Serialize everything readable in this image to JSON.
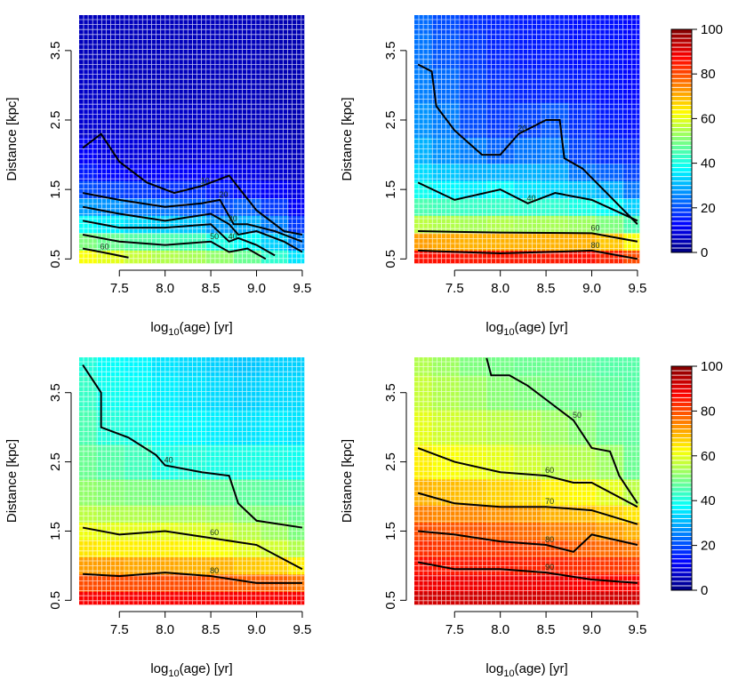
{
  "chart_data": [
    {
      "type": "heatmap",
      "x_label": {
        "base": "log",
        "sub": "10",
        "rest": "(age) [yr]"
      },
      "y_label": "Distance [kpc]",
      "xlim": [
        7.06,
        9.52
      ],
      "ylim": [
        0.44,
        4.01
      ],
      "xticks": [
        7.5,
        {
          "value": 8,
          "label": "8.0"
        },
        8.5,
        {
          "value": 9,
          "label": "9.0"
        },
        9.5
      ],
      "yticks": [
        0.5,
        1.5,
        2.5,
        3.5
      ],
      "zlim": [
        0,
        100
      ],
      "colorscale": [
        "#00007f",
        "#0000ff",
        "#007fff",
        "#00ffff",
        "#7fff7f",
        "#ffff00",
        "#ff7f00",
        "#ff0000",
        "#7f0000"
      ],
      "x": [
        7.1,
        7.4,
        7.7,
        8.0,
        8.3,
        8.6,
        8.9,
        9.2,
        9.5
      ],
      "y": [
        0.5,
        0.75,
        1.0,
        1.25,
        1.5,
        1.75,
        2.0,
        2.5,
        3.0,
        3.5,
        4.0
      ],
      "z": [
        [
          62,
          60,
          57,
          55,
          54,
          52,
          48,
          42,
          35
        ],
        [
          50,
          48,
          46,
          45,
          44,
          40,
          38,
          33,
          25
        ],
        [
          38,
          36,
          34,
          33,
          32,
          28,
          30,
          25,
          18
        ],
        [
          28,
          27,
          25,
          24,
          22,
          20,
          22,
          18,
          12
        ],
        [
          20,
          19,
          18,
          17,
          17,
          15,
          14,
          12,
          10
        ],
        [
          15,
          13,
          12,
          12,
          12,
          12,
          10,
          8,
          7
        ],
        [
          12,
          10,
          9,
          9,
          9,
          9,
          8,
          7,
          6
        ],
        [
          8,
          8,
          7,
          7,
          7,
          7,
          6,
          6,
          5
        ],
        [
          7,
          7,
          6,
          6,
          6,
          6,
          6,
          5,
          5
        ],
        [
          6,
          6,
          6,
          6,
          6,
          6,
          6,
          5,
          5
        ],
        [
          6,
          6,
          6,
          6,
          6,
          6,
          6,
          5,
          5
        ]
      ],
      "contours": [
        {
          "level": 10,
          "x": [
            7.1,
            7.3,
            7.5,
            7.8,
            8.1,
            8.4,
            8.7,
            9.0,
            9.3,
            9.5
          ],
          "y": [
            2.1,
            2.3,
            1.9,
            1.6,
            1.45,
            1.55,
            1.7,
            1.2,
            0.9,
            0.85
          ]
        },
        {
          "level": 20,
          "x": [
            7.1,
            7.5,
            8.0,
            8.4,
            8.6,
            8.75,
            8.9,
            9.2,
            9.5
          ],
          "y": [
            1.45,
            1.35,
            1.25,
            1.3,
            1.35,
            1.0,
            1.0,
            0.9,
            0.75
          ]
        },
        {
          "level": 30,
          "x": [
            7.1,
            7.5,
            8.0,
            8.5,
            8.7,
            8.8,
            9.0,
            9.3,
            9.5
          ],
          "y": [
            1.25,
            1.15,
            1.05,
            1.15,
            1.0,
            0.85,
            0.9,
            0.75,
            0.6
          ]
        },
        {
          "level": 40,
          "x": [
            7.1,
            7.5,
            8.0,
            8.5,
            8.7,
            8.8,
            9.0,
            9.2
          ],
          "y": [
            1.05,
            0.95,
            0.95,
            1.0,
            0.75,
            0.8,
            0.7,
            0.55
          ]
        },
        {
          "level": 50,
          "x": [
            7.1,
            7.5,
            8.0,
            8.5,
            8.7,
            8.9,
            9.1
          ],
          "y": [
            0.85,
            0.75,
            0.7,
            0.75,
            0.6,
            0.65,
            0.5
          ]
        },
        {
          "level": 60,
          "x": [
            7.1,
            7.3,
            7.6
          ],
          "y": [
            0.65,
            0.6,
            0.52
          ]
        }
      ]
    },
    {
      "type": "heatmap",
      "x_label": {
        "base": "log",
        "sub": "10",
        "rest": "(age) [yr]"
      },
      "y_label": "Distance [kpc]",
      "xlim": [
        7.06,
        9.52
      ],
      "ylim": [
        0.44,
        4.01
      ],
      "xticks": [
        7.5,
        {
          "value": 8,
          "label": "8.0"
        },
        8.5,
        {
          "value": 9,
          "label": "9.0"
        },
        9.5
      ],
      "yticks": [
        0.5,
        1.5,
        2.5,
        3.5
      ],
      "zlim": [
        0,
        100
      ],
      "colorscale": [
        "#00007f",
        "#0000ff",
        "#007fff",
        "#00ffff",
        "#7fff7f",
        "#ffff00",
        "#ff7f00",
        "#ff0000",
        "#7f0000"
      ],
      "x": [
        7.1,
        7.4,
        7.7,
        8.0,
        8.3,
        8.6,
        8.9,
        9.2,
        9.5
      ],
      "y": [
        0.5,
        0.75,
        1.0,
        1.25,
        1.5,
        1.75,
        2.0,
        2.5,
        3.0,
        3.5,
        4.0
      ],
      "z": [
        [
          86,
          86,
          85,
          85,
          85,
          85,
          86,
          84,
          80
        ],
        [
          72,
          71,
          70,
          70,
          70,
          70,
          70,
          68,
          62
        ],
        [
          56,
          55,
          54,
          55,
          54,
          54,
          53,
          50,
          45
        ],
        [
          45,
          44,
          43,
          43,
          42,
          42,
          40,
          38,
          33
        ],
        [
          39,
          37,
          36,
          38,
          35,
          34,
          32,
          30,
          24
        ],
        [
          34,
          32,
          30,
          30,
          30,
          29,
          24,
          22,
          19
        ],
        [
          30,
          27,
          25,
          22,
          24,
          25,
          19,
          17,
          16
        ],
        [
          27,
          25,
          20,
          18,
          19,
          21,
          17,
          15,
          14
        ],
        [
          25,
          23,
          19,
          17,
          16,
          16,
          15,
          14,
          13
        ],
        [
          24,
          21,
          18,
          16,
          15,
          15,
          14,
          14,
          13
        ],
        [
          23,
          20,
          17,
          16,
          15,
          15,
          14,
          14,
          13
        ]
      ],
      "contours": [
        {
          "level": 20,
          "x": [
            7.1,
            7.25,
            7.3,
            7.5,
            7.8,
            8.0,
            8.2,
            8.5,
            8.65,
            8.7,
            8.9,
            9.2,
            9.5
          ],
          "y": [
            3.3,
            3.2,
            2.7,
            2.35,
            2.0,
            2.0,
            2.3,
            2.5,
            2.5,
            1.95,
            1.8,
            1.4,
            1.0
          ]
        },
        {
          "level": 40,
          "x": [
            7.1,
            7.5,
            8.0,
            8.3,
            8.6,
            9.0,
            9.5
          ],
          "y": [
            1.6,
            1.35,
            1.5,
            1.3,
            1.45,
            1.35,
            1.05
          ]
        },
        {
          "level": 60,
          "x": [
            7.1,
            8.0,
            9.0,
            9.5
          ],
          "y": [
            0.9,
            0.88,
            0.87,
            0.75
          ]
        },
        {
          "level": 80,
          "x": [
            7.1,
            8.0,
            9.0,
            9.5
          ],
          "y": [
            0.62,
            0.58,
            0.62,
            0.5
          ]
        }
      ]
    },
    {
      "type": "heatmap",
      "x_label": {
        "base": "log",
        "sub": "10",
        "rest": "(age) [yr]"
      },
      "y_label": "Distance [kpc]",
      "xlim": [
        7.06,
        9.52
      ],
      "ylim": [
        0.44,
        4.01
      ],
      "xticks": [
        7.5,
        {
          "value": 8,
          "label": "8.0"
        },
        8.5,
        {
          "value": 9,
          "label": "9.0"
        },
        9.5
      ],
      "yticks": [
        0.5,
        1.5,
        2.5,
        3.5
      ],
      "zlim": [
        0,
        100
      ],
      "colorscale": [
        "#00007f",
        "#0000ff",
        "#007fff",
        "#00ffff",
        "#7fff7f",
        "#ffff00",
        "#ff7f00",
        "#ff0000",
        "#7f0000"
      ],
      "x": [
        7.1,
        7.4,
        7.7,
        8.0,
        8.3,
        8.6,
        8.9,
        9.2,
        9.5
      ],
      "y": [
        0.5,
        0.75,
        1.0,
        1.25,
        1.5,
        1.75,
        2.0,
        2.5,
        3.0,
        3.5,
        4.0
      ],
      "z": [
        [
          88,
          88,
          88,
          88,
          88,
          88,
          88,
          88,
          88
        ],
        [
          80,
          80,
          80,
          80,
          80,
          79,
          78,
          78,
          76
        ],
        [
          72,
          72,
          71,
          71,
          70,
          70,
          68,
          67,
          64
        ],
        [
          65,
          64,
          64,
          64,
          63,
          62,
          60,
          58,
          55
        ],
        [
          61,
          60,
          60,
          60,
          59,
          58,
          56,
          53,
          50
        ],
        [
          56,
          55,
          55,
          54,
          54,
          53,
          51,
          50,
          48
        ],
        [
          52,
          51,
          50,
          49,
          49,
          48,
          47,
          46,
          45
        ],
        [
          48,
          46,
          44,
          40,
          41,
          40,
          40,
          40,
          39
        ],
        [
          45,
          41,
          40,
          38,
          37,
          36,
          35,
          36,
          35
        ],
        [
          43,
          39,
          38,
          36,
          35,
          34,
          33,
          34,
          34
        ],
        [
          41,
          38,
          37,
          35,
          34,
          33,
          32,
          33,
          33
        ]
      ],
      "contours": [
        {
          "level": 40,
          "x": [
            7.1,
            7.3,
            7.3,
            7.6,
            7.9,
            8.0,
            8.4,
            8.7,
            8.8,
            9.0,
            9.5
          ],
          "y": [
            3.9,
            3.5,
            3.0,
            2.85,
            2.6,
            2.45,
            2.35,
            2.3,
            1.9,
            1.65,
            1.55
          ]
        },
        {
          "level": 60,
          "x": [
            7.1,
            7.5,
            8.0,
            8.5,
            9.0,
            9.5
          ],
          "y": [
            1.55,
            1.45,
            1.5,
            1.4,
            1.3,
            0.95
          ]
        },
        {
          "level": 80,
          "x": [
            7.1,
            7.5,
            8.0,
            8.5,
            9.0,
            9.5
          ],
          "y": [
            0.88,
            0.85,
            0.9,
            0.85,
            0.75,
            0.75
          ]
        }
      ]
    },
    {
      "type": "heatmap",
      "x_label": {
        "base": "log",
        "sub": "10",
        "rest": "(age) [yr]"
      },
      "y_label": "Distance [kpc]",
      "xlim": [
        7.06,
        9.52
      ],
      "ylim": [
        0.44,
        4.01
      ],
      "xticks": [
        7.5,
        {
          "value": 8,
          "label": "8.0"
        },
        8.5,
        {
          "value": 9,
          "label": "9.0"
        },
        9.5
      ],
      "yticks": [
        0.5,
        1.5,
        2.5,
        3.5
      ],
      "zlim": [
        0,
        100
      ],
      "colorscale": [
        "#00007f",
        "#0000ff",
        "#007fff",
        "#00ffff",
        "#7fff7f",
        "#ffff00",
        "#ff7f00",
        "#ff0000",
        "#7f0000"
      ],
      "x": [
        7.1,
        7.4,
        7.7,
        8.0,
        8.3,
        8.6,
        8.9,
        9.2,
        9.5
      ],
      "y": [
        0.5,
        0.75,
        1.0,
        1.25,
        1.5,
        1.75,
        2.0,
        2.5,
        3.0,
        3.5,
        4.0
      ],
      "z": [
        [
          92,
          92,
          92,
          92,
          92,
          92,
          92,
          92,
          92
        ],
        [
          89,
          89,
          89,
          89,
          89,
          89,
          88,
          87,
          87
        ],
        [
          86,
          85,
          85,
          85,
          84,
          84,
          83,
          82,
          81
        ],
        [
          83,
          82,
          82,
          82,
          81,
          80,
          78,
          77,
          76
        ],
        [
          80,
          79,
          79,
          78,
          77,
          75,
          74,
          72,
          70
        ],
        [
          75,
          74,
          74,
          73,
          72,
          70,
          69,
          67,
          65
        ],
        [
          70,
          69,
          68,
          67,
          66,
          64,
          63,
          60,
          56
        ],
        [
          64,
          62,
          61,
          60,
          58,
          56,
          55,
          53,
          48
        ],
        [
          60,
          58,
          57,
          56,
          55,
          53,
          51,
          48,
          47
        ],
        [
          57,
          55,
          53,
          51,
          50,
          49,
          48,
          47,
          46
        ],
        [
          55,
          53,
          50,
          49,
          48,
          48,
          47,
          46,
          46
        ]
      ],
      "contours": [
        {
          "level": 50,
          "x": [
            7.85,
            7.9,
            8.1,
            8.3,
            8.5,
            8.8,
            9.0,
            9.2,
            9.3,
            9.5
          ],
          "y": [
            4.0,
            3.75,
            3.75,
            3.6,
            3.4,
            3.1,
            2.7,
            2.65,
            2.3,
            1.9
          ]
        },
        {
          "level": 60,
          "x": [
            7.1,
            7.5,
            8.0,
            8.5,
            8.8,
            9.0,
            9.5
          ],
          "y": [
            2.7,
            2.5,
            2.35,
            2.3,
            2.2,
            2.2,
            1.85
          ]
        },
        {
          "level": 70,
          "x": [
            7.1,
            7.5,
            8.0,
            8.5,
            9.0,
            9.5
          ],
          "y": [
            2.05,
            1.9,
            1.85,
            1.85,
            1.8,
            1.6
          ]
        },
        {
          "level": 80,
          "x": [
            7.1,
            7.5,
            8.0,
            8.5,
            8.8,
            9.0,
            9.5
          ],
          "y": [
            1.5,
            1.45,
            1.35,
            1.3,
            1.2,
            1.45,
            1.3
          ]
        },
        {
          "level": 90,
          "x": [
            7.1,
            7.5,
            8.0,
            8.5,
            9.0,
            9.5
          ],
          "y": [
            1.05,
            0.95,
            0.95,
            0.9,
            0.8,
            0.75
          ]
        }
      ]
    },
    {
      "type": "colorbar",
      "zlim": [
        0,
        100
      ],
      "zticks": [
        0,
        20,
        40,
        60,
        80,
        100
      ],
      "colorscale": [
        "#00007f",
        "#0000ff",
        "#007fff",
        "#00ffff",
        "#7fff7f",
        "#ffff00",
        "#ff7f00",
        "#ff0000",
        "#7f0000"
      ]
    },
    {
      "type": "colorbar",
      "zlim": [
        0,
        100
      ],
      "zticks": [
        0,
        20,
        40,
        60,
        80,
        100
      ],
      "colorscale": [
        "#00007f",
        "#0000ff",
        "#007fff",
        "#00ffff",
        "#7fff7f",
        "#ffff00",
        "#ff7f00",
        "#ff0000",
        "#7f0000"
      ]
    }
  ]
}
